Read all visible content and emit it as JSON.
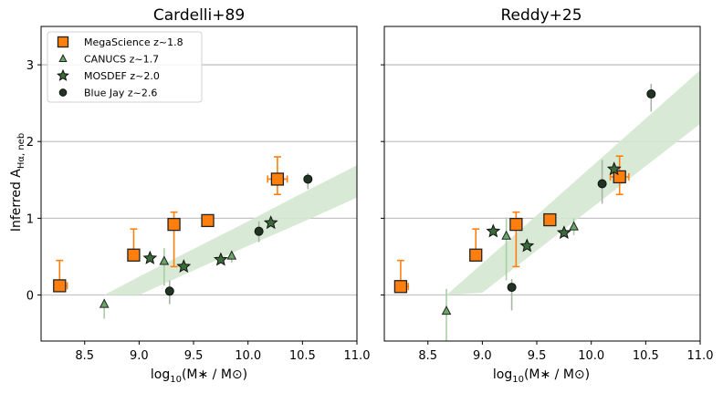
{
  "chart_data": [
    {
      "type": "scatter",
      "title": "Cardelli+89",
      "xlabel": {
        "base": "log",
        "sub": "10",
        "rest": "(M∗ / M⊙)"
      },
      "ylabel": {
        "main": "Inferred A",
        "sub": "Hα, neb"
      },
      "xlim": [
        8.1,
        11.0
      ],
      "ylim": [
        -0.6,
        3.5
      ],
      "xticks": [
        "8.5",
        "9.0",
        "9.5",
        "10.0",
        "10.5",
        "11.0"
      ],
      "yticks": [
        "0",
        "1",
        "2",
        "3"
      ],
      "grid": "horizontal",
      "legend": "top-left",
      "band": {
        "color": "#d4e8d0",
        "x": [
          8.68,
          9.0,
          9.5,
          10.0,
          10.5,
          11.0
        ],
        "lower": [
          0.0,
          0.0,
          0.32,
          0.64,
          0.95,
          1.27
        ],
        "upper": [
          0.0,
          0.24,
          0.6,
          0.96,
          1.33,
          1.69
        ]
      },
      "series": [
        {
          "name": "MegaScience z~1.8",
          "marker": "square",
          "color": "#ff7f0e",
          "errcolor": "#ff7f0e",
          "points": [
            {
              "x": 8.27,
              "y": 0.12,
              "ylo": 0.12,
              "yhi": 0.45,
              "xlo": 8.27,
              "xhi": 8.34
            },
            {
              "x": 8.95,
              "y": 0.52,
              "ylo": 0.52,
              "yhi": 0.86
            },
            {
              "x": 9.32,
              "y": 0.92,
              "ylo": 0.37,
              "yhi": 1.08
            },
            {
              "x": 9.63,
              "y": 0.97,
              "ylo": 0.95,
              "yhi": 1.03
            },
            {
              "x": 10.27,
              "y": 1.51,
              "ylo": 1.31,
              "yhi": 1.8,
              "xlo": 10.18,
              "xhi": 10.36
            }
          ]
        },
        {
          "name": "CANUCS z~1.7",
          "marker": "triangle",
          "color": "#6aa86a",
          "errcolor": "#a9cfa4",
          "points": [
            {
              "x": 8.68,
              "y": -0.12,
              "ylo": -0.31,
              "yhi": -0.05
            },
            {
              "x": 9.23,
              "y": 0.44,
              "ylo": 0.12,
              "yhi": 0.61
            },
            {
              "x": 9.85,
              "y": 0.51,
              "ylo": 0.42,
              "yhi": 0.58
            }
          ]
        },
        {
          "name": "MOSDEF z~2.0",
          "marker": "star",
          "color": "#3b6b3b",
          "errcolor": "#9bb89b",
          "points": [
            {
              "x": 9.1,
              "y": 0.48
            },
            {
              "x": 9.41,
              "y": 0.37
            },
            {
              "x": 9.75,
              "y": 0.46
            },
            {
              "x": 10.21,
              "y": 0.94
            }
          ]
        },
        {
          "name": "Blue Jay z~2.6",
          "marker": "circle",
          "color": "#1f3522",
          "errcolor": "#a8b4a8",
          "points": [
            {
              "x": 9.28,
              "y": 0.05,
              "ylo": -0.12,
              "yhi": 0.19
            },
            {
              "x": 10.1,
              "y": 0.83,
              "ylo": 0.69,
              "yhi": 0.96
            },
            {
              "x": 10.55,
              "y": 1.51,
              "ylo": 1.38,
              "yhi": 1.59
            }
          ]
        }
      ]
    },
    {
      "type": "scatter",
      "title": "Reddy+25",
      "xlabel": {
        "base": "log",
        "sub": "10",
        "rest": "(M∗ / M⊙)"
      },
      "xlim": [
        8.1,
        11.0
      ],
      "ylim": [
        -0.6,
        3.5
      ],
      "xticks": [
        "8.5",
        "9.0",
        "9.5",
        "10.0",
        "10.5",
        "11.0"
      ],
      "grid": "horizontal",
      "band": {
        "color": "#d4e8d0",
        "x": [
          8.67,
          9.0,
          9.5,
          10.0,
          10.5,
          11.0
        ],
        "lower": [
          0.0,
          0.03,
          0.58,
          1.13,
          1.68,
          2.23
        ],
        "upper": [
          0.0,
          0.41,
          1.04,
          1.67,
          2.3,
          2.93
        ]
      },
      "series": [
        {
          "name": "MegaScience z~1.8",
          "marker": "square",
          "color": "#ff7f0e",
          "errcolor": "#ff7f0e",
          "points": [
            {
              "x": 8.25,
              "y": 0.11,
              "ylo": 0.11,
              "yhi": 0.45,
              "xlo": 8.25,
              "xhi": 8.32
            },
            {
              "x": 8.94,
              "y": 0.52,
              "ylo": 0.52,
              "yhi": 0.86
            },
            {
              "x": 9.31,
              "y": 0.92,
              "ylo": 0.37,
              "yhi": 1.08
            },
            {
              "x": 9.62,
              "y": 0.98,
              "ylo": 0.95,
              "yhi": 1.03
            },
            {
              "x": 10.26,
              "y": 1.54,
              "ylo": 1.31,
              "yhi": 1.81,
              "xlo": 10.175,
              "xhi": 10.345
            }
          ]
        },
        {
          "name": "CANUCS z~1.7",
          "marker": "triangle",
          "color": "#6aa86a",
          "errcolor": "#a9cfa4",
          "points": [
            {
              "x": 8.67,
              "y": -0.21,
              "ylo": -0.6,
              "yhi": 0.08
            },
            {
              "x": 9.22,
              "y": 0.77,
              "ylo": 0.19,
              "yhi": 1.01
            },
            {
              "x": 9.84,
              "y": 0.89,
              "ylo": 0.78,
              "yhi": 1.0
            }
          ]
        },
        {
          "name": "MOSDEF z~2.0",
          "marker": "star",
          "color": "#3b6b3b",
          "errcolor": "#9bb89b",
          "points": [
            {
              "x": 9.1,
              "y": 0.83
            },
            {
              "x": 9.41,
              "y": 0.64
            },
            {
              "x": 9.75,
              "y": 0.81
            },
            {
              "x": 10.21,
              "y": 1.64
            }
          ]
        },
        {
          "name": "Blue Jay z~2.6",
          "marker": "circle",
          "color": "#1f3522",
          "errcolor": "#a8b4a8",
          "points": [
            {
              "x": 9.27,
              "y": 0.1,
              "ylo": -0.2,
              "yhi": 0.21
            },
            {
              "x": 10.1,
              "y": 1.45,
              "ylo": 1.19,
              "yhi": 1.76
            },
            {
              "x": 10.55,
              "y": 2.62,
              "ylo": 2.39,
              "yhi": 2.75
            }
          ]
        }
      ]
    }
  ]
}
